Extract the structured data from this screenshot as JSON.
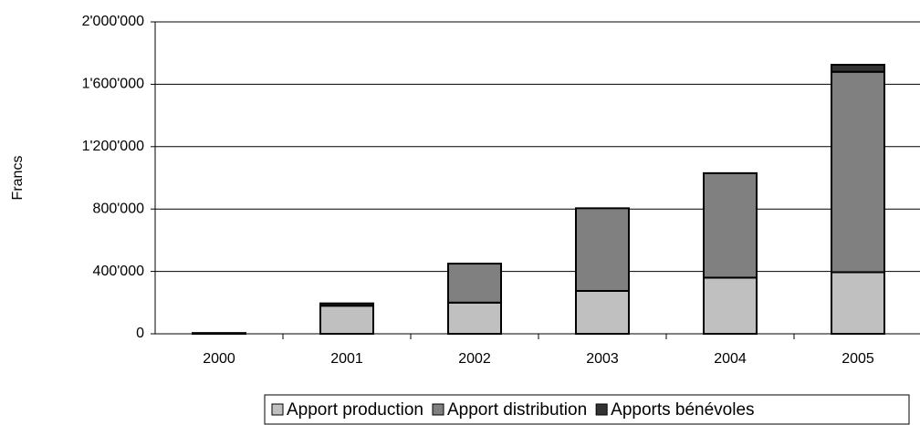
{
  "chart_data": {
    "type": "stacked_bar",
    "y_label": "Francs",
    "categories": [
      "2000",
      "2001",
      "2002",
      "2003",
      "2004",
      "2005"
    ],
    "series": [
      {
        "name": "Apport production",
        "color": "#c0c0c0",
        "values": [
          5000,
          180000,
          200000,
          275000,
          360000,
          395000
        ]
      },
      {
        "name": "Apport distribution",
        "color": "#808080",
        "values": [
          0,
          0,
          250000,
          530000,
          670000,
          1285000
        ]
      },
      {
        "name": "Apports bénévoles",
        "color": "#333333",
        "values": [
          0,
          15000,
          0,
          0,
          0,
          45000
        ]
      }
    ],
    "ylim": [
      0,
      2000000
    ],
    "yticks": [
      0,
      {
        "value": 400000,
        "label": "400'000"
      },
      {
        "value": 800000,
        "label": "800'000"
      },
      {
        "value": 1200000,
        "label": "1'200'000"
      },
      {
        "value": 1600000,
        "label": "1'600'000"
      },
      {
        "value": 2000000,
        "label": "2'000'000"
      }
    ],
    "grid": true,
    "legend": "bottom-right"
  }
}
